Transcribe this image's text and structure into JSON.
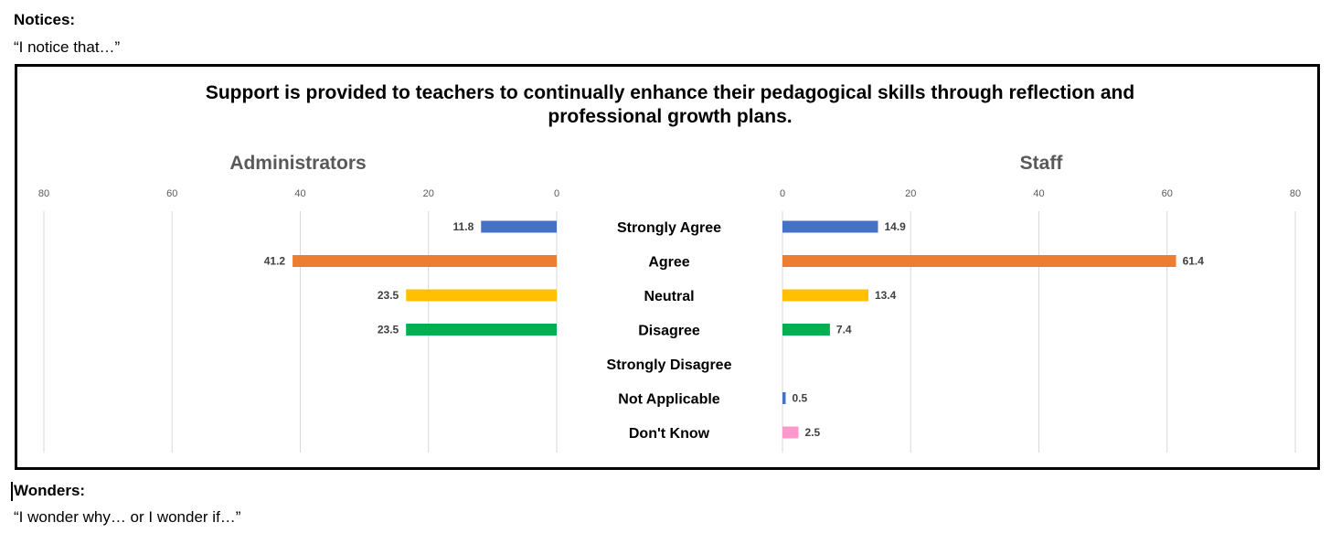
{
  "notices": {
    "heading": "Notices:",
    "prompt": "“I notice that…”"
  },
  "wonders": {
    "heading": "Wonders:",
    "prompt": "“I wonder why… or I wonder if…”"
  },
  "chart_data": {
    "type": "bar",
    "orientation": "horizontal",
    "title_line1": "Support is provided to teachers to continually enhance their pedagogical skills through reflection and",
    "title_line2": "professional growth plans.",
    "categories": [
      "Strongly Agree",
      "Agree",
      "Neutral",
      "Disagree",
      "Strongly Disagree",
      "Not Applicable",
      "Don't Know"
    ],
    "panels": [
      {
        "name": "Administrators",
        "direction": "left",
        "values": [
          11.8,
          41.2,
          23.5,
          23.5,
          null,
          null,
          null
        ],
        "labels": [
          "11.8",
          "41.2",
          "23.5",
          "23.5",
          "",
          "",
          ""
        ]
      },
      {
        "name": "Staff",
        "direction": "right",
        "values": [
          14.9,
          61.4,
          13.4,
          7.4,
          null,
          0.5,
          2.5
        ],
        "labels": [
          "14.9",
          "61.4",
          "13.4",
          "7.4",
          "",
          "0.5",
          "2.5"
        ]
      }
    ],
    "category_colors": [
      "#4472C4",
      "#ED7D31",
      "#FFC000",
      "#00B050",
      "#4472C4",
      "#4472C4",
      "#FF99CC"
    ],
    "xlim": [
      0,
      80
    ],
    "ticks": [
      "0",
      "20",
      "40",
      "60",
      "80"
    ],
    "grid": true,
    "gridline_color": "#D9D9D9",
    "axis_label_color": "#595959"
  }
}
